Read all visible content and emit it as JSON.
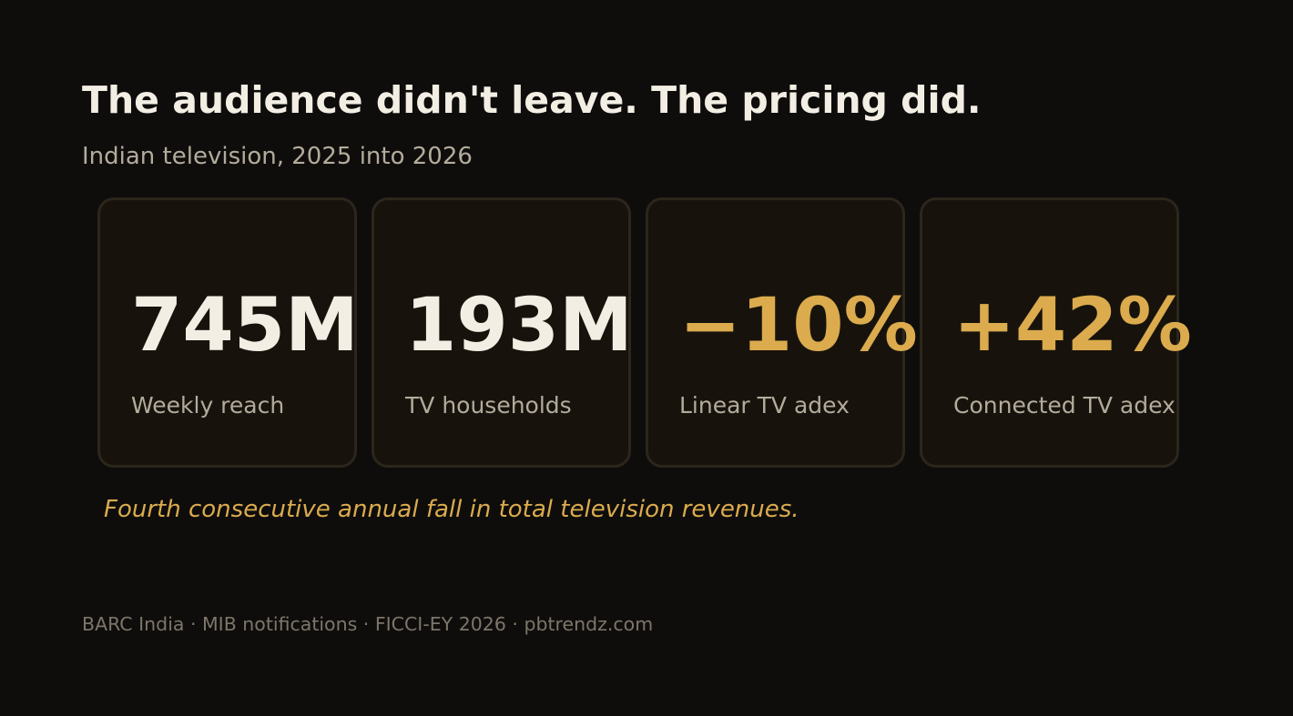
{
  "title": "The audience didn't leave. The pricing did.",
  "subtitle": "Indian television, 2025 into 2026",
  "stats": [
    {
      "value": "745M",
      "label": "Weekly reach"
    },
    {
      "value": "193M",
      "label": "TV households"
    },
    {
      "value": "−10%",
      "label": "Linear TV adex"
    },
    {
      "value": "+42%",
      "label": "Connected TV adex"
    }
  ],
  "note": "Fourth consecutive annual fall in total television revenues.",
  "sources": "BARC India · MIB notifications · FICCI-EY 2026 · pbtrendz.com",
  "colors": {
    "background": "#0e0d0b",
    "primary_text": "#f3eee4",
    "accent": "#dbab4e",
    "muted_text": "#b3ab9c"
  }
}
